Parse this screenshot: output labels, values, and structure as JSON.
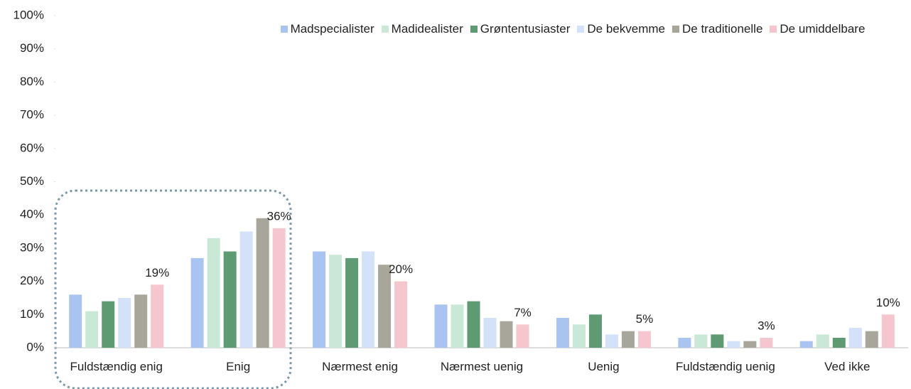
{
  "chart_data": {
    "type": "bar",
    "categories": [
      "Fuldstændig enig",
      "Enig",
      "Nærmest enig",
      "Nærmest uenig",
      "Uenig",
      "Fuldstændig uenig",
      "Ved ikke"
    ],
    "series": [
      {
        "name": "Madspecialister",
        "color": "#a9c4f0",
        "values": [
          16,
          27,
          29,
          13,
          9,
          3,
          2
        ]
      },
      {
        "name": "Madidealister",
        "color": "#c9e8d6",
        "values": [
          11,
          33,
          28,
          13,
          7,
          4,
          4
        ]
      },
      {
        "name": "Grøntentusiaster",
        "color": "#5e9a72",
        "values": [
          14,
          29,
          27,
          14,
          10,
          4,
          3
        ]
      },
      {
        "name": "De bekvemme",
        "color": "#d3e2f8",
        "values": [
          15,
          35,
          29,
          9,
          4,
          2,
          6
        ]
      },
      {
        "name": "De traditionelle",
        "color": "#a8a59b",
        "values": [
          16,
          39,
          25,
          8,
          5,
          2,
          5
        ]
      },
      {
        "name": "De umiddelbare",
        "color": "#f5c6cd",
        "values": [
          19,
          36,
          20,
          7,
          5,
          3,
          10
        ],
        "value_labels": [
          "19%",
          "36%",
          "20%",
          "7%",
          "5%",
          "3%",
          "10%"
        ]
      }
    ],
    "ylim": [
      0,
      100
    ],
    "yticks": [
      {
        "value": 0,
        "label": "0%"
      },
      {
        "value": 10,
        "label": "10%"
      },
      {
        "value": 20,
        "label": "20%"
      },
      {
        "value": 30,
        "label": "30%"
      },
      {
        "value": 40,
        "label": "40%"
      },
      {
        "value": 50,
        "label": "50%"
      },
      {
        "value": 60,
        "label": "60%"
      },
      {
        "value": 70,
        "label": "70%"
      },
      {
        "value": 80,
        "label": "80%"
      },
      {
        "value": 90,
        "label": "90%"
      },
      {
        "value": 100,
        "label": "100%"
      }
    ],
    "grid": false,
    "legend": "top"
  }
}
